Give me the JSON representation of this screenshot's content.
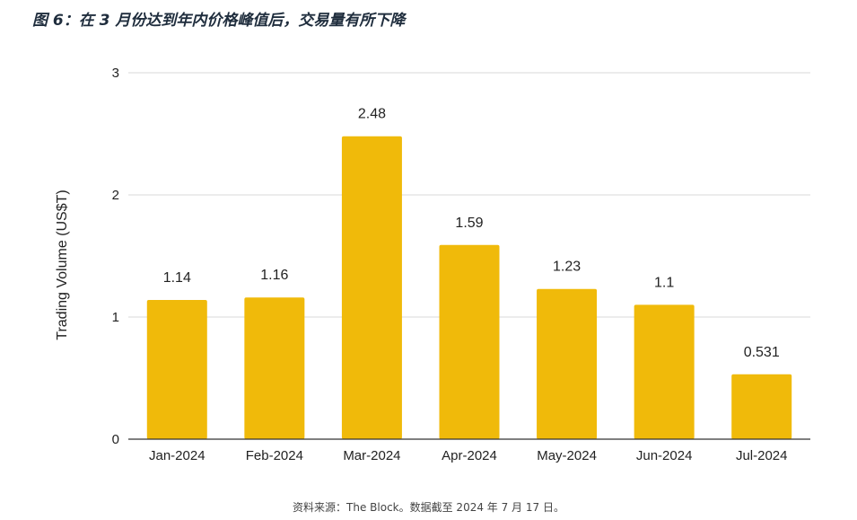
{
  "title": "图 6：在 3 月份达到年内价格峰值后，交易量有所下降",
  "source": "资料来源：The Block。数据截至 2024 年 7 月 17 日。",
  "colors": {
    "bar": "#F0BA0A",
    "grid": "#d9d9d9",
    "axis": "#333333"
  },
  "chart_data": {
    "type": "bar",
    "categories": [
      "Jan-2024",
      "Feb-2024",
      "Mar-2024",
      "Apr-2024",
      "May-2024",
      "Jun-2024",
      "Jul-2024"
    ],
    "values": [
      1.14,
      1.16,
      2.48,
      1.59,
      1.23,
      1.1,
      0.531
    ],
    "data_labels": [
      "1.14",
      "1.16",
      "2.48",
      "1.59",
      "1.23",
      "1.1",
      "0.531"
    ],
    "ylabel": "Trading Volume (US$T)",
    "xlabel": "",
    "ylim": [
      0,
      3
    ],
    "yticks": [
      "0",
      "1",
      "2",
      "3"
    ],
    "grid": true
  }
}
